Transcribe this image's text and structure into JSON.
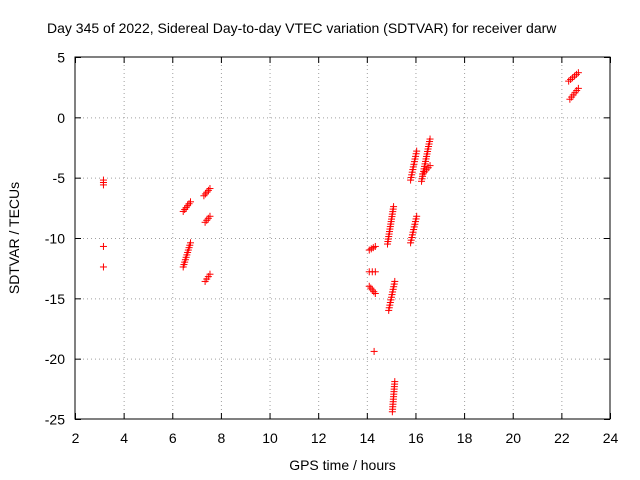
{
  "chart_data": {
    "type": "scatter",
    "title": "Day 345 of 2022, Sidereal Day-to-day VTEC variation (SDTVAR) for receiver darw",
    "xlabel": "GPS time / hours",
    "ylabel": "SDTVAR / TECUs",
    "xlim": [
      2,
      24
    ],
    "ylim": [
      -25,
      5
    ],
    "xticks": [
      2,
      4,
      6,
      8,
      10,
      12,
      14,
      16,
      18,
      20,
      22,
      24
    ],
    "yticks": [
      -25,
      -20,
      -15,
      -10,
      -5,
      0,
      5
    ],
    "grid": true,
    "marker": "+",
    "color": "#ff0000",
    "series": [
      {
        "name": "SDTVAR",
        "segments": [
          {
            "x": [
              3.17,
              3.17
            ],
            "y": [
              -5.2,
              -5.6
            ]
          },
          {
            "x": [
              3.17
            ],
            "y": [
              -10.7
            ]
          },
          {
            "x": [
              3.17
            ],
            "y": [
              -12.4
            ]
          },
          {
            "x": [
              6.45,
              6.75
            ],
            "y": [
              -7.8,
              -7.0
            ]
          },
          {
            "x": [
              6.45,
              6.75
            ],
            "y": [
              -12.4,
              -10.4
            ]
          },
          {
            "x": [
              7.3,
              7.55
            ],
            "y": [
              -6.5,
              -5.9
            ]
          },
          {
            "x": [
              7.35,
              7.55
            ],
            "y": [
              -8.7,
              -8.2
            ]
          },
          {
            "x": [
              7.35,
              7.55
            ],
            "y": [
              -13.6,
              -13.0
            ]
          },
          {
            "x": [
              14.1,
              14.35
            ],
            "y": [
              -11.0,
              -10.7
            ]
          },
          {
            "x": [
              14.1,
              14.35
            ],
            "y": [
              -12.8,
              -12.8
            ]
          },
          {
            "x": [
              14.1,
              14.35
            ],
            "y": [
              -14.0,
              -14.6
            ]
          },
          {
            "x": [
              14.3
            ],
            "y": [
              -19.4
            ]
          },
          {
            "x": [
              14.85,
              15.1
            ],
            "y": [
              -10.5,
              -7.4
            ]
          },
          {
            "x": [
              14.9,
              15.15
            ],
            "y": [
              -16.0,
              -13.6
            ]
          },
          {
            "x": [
              15.05,
              15.15
            ],
            "y": [
              -24.4,
              -21.9
            ]
          },
          {
            "x": [
              15.8,
              16.05
            ],
            "y": [
              -5.2,
              -2.8
            ]
          },
          {
            "x": [
              15.8,
              16.05
            ],
            "y": [
              -10.4,
              -8.2
            ]
          },
          {
            "x": [
              16.25,
              16.6
            ],
            "y": [
              -5.3,
              -1.8
            ]
          },
          {
            "x": [
              16.3,
              16.6
            ],
            "y": [
              -4.7,
              -4.0
            ]
          },
          {
            "x": [
              22.3,
              22.7
            ],
            "y": [
              3.0,
              3.7
            ]
          },
          {
            "x": [
              22.35,
              22.7
            ],
            "y": [
              1.5,
              2.4
            ]
          }
        ]
      }
    ]
  }
}
